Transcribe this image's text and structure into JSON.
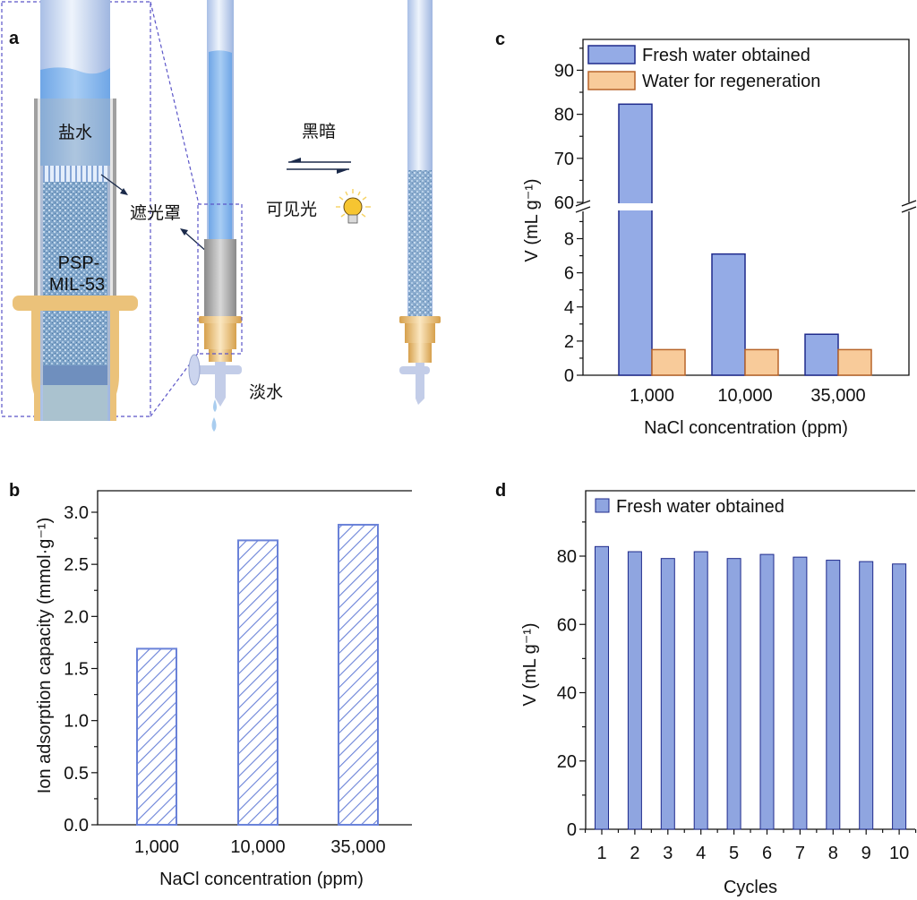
{
  "panel_labels": {
    "a": "a",
    "b": "b",
    "c": "c",
    "d": "d"
  },
  "schematic": {
    "labels": {
      "salt_water": "盐水",
      "light_shield": "遮光罩",
      "material_line1": "PSP-",
      "material_line2": "MIL-53",
      "dark": "黑暗",
      "visible_light": "可见光",
      "fresh_water": "淡水"
    },
    "icons": [
      "bulb-icon",
      "equilibrium-arrows-icon",
      "water-drop-icon",
      "stopcock-icon"
    ],
    "colors": {
      "water": "#8fbcec",
      "material": "#7fa6c9",
      "shield": "#9a9a9a",
      "fitting": "#e2b76a",
      "zoom_box": "#5b55c8"
    }
  },
  "chart_data": [
    {
      "id": "b",
      "type": "bar",
      "title": "",
      "xlabel": "NaCl concentration (ppm)",
      "ylabel": "Ion adsorption capacity (mmol·g⁻¹)",
      "categories": [
        "1,000",
        "10,000",
        "35,000"
      ],
      "series": [
        {
          "name": "Ion adsorption capacity",
          "values": [
            1.69,
            2.73,
            2.88
          ],
          "pattern": "hatched",
          "color": "#6a82d8"
        }
      ],
      "ylim": [
        0,
        3.2
      ],
      "yticks": [
        "0.0",
        "0.5",
        "1.0",
        "1.5",
        "2.0",
        "2.5",
        "3.0"
      ],
      "ytick_values": [
        0,
        0.5,
        1.0,
        1.5,
        2.0,
        2.5,
        3.0
      ],
      "grid": false,
      "legend": "none"
    },
    {
      "id": "c",
      "type": "bar",
      "title": "",
      "xlabel": "NaCl concentration (ppm)",
      "ylabel": "V (mL g⁻¹)",
      "categories": [
        "1,000",
        "10,000",
        "35,000"
      ],
      "series": [
        {
          "name": "Fresh water obtained",
          "values": [
            82.3,
            7.1,
            2.4
          ],
          "color": "#94abe6",
          "edge": "#1f2a8c"
        },
        {
          "name": "Water for regeneration",
          "values": [
            1.5,
            1.5,
            1.5
          ],
          "color": "#f8cb9a",
          "edge": "#b8652a"
        }
      ],
      "axis_break": {
        "lower": [
          0,
          9.6
        ],
        "upper": [
          60,
          97
        ]
      },
      "yticks_lower": [
        "0",
        "2",
        "4",
        "6",
        "8"
      ],
      "yticks_upper": [
        "60",
        "70",
        "80",
        "90"
      ],
      "grid": false,
      "legend": "top-left"
    },
    {
      "id": "d",
      "type": "bar",
      "title": "",
      "xlabel": "Cycles",
      "ylabel": "V (mL g⁻¹)",
      "categories": [
        "1",
        "2",
        "3",
        "4",
        "5",
        "6",
        "7",
        "8",
        "9",
        "10"
      ],
      "series": [
        {
          "name": "Fresh water obtained",
          "values": [
            82.8,
            81.3,
            79.3,
            81.3,
            79.3,
            80.5,
            79.7,
            78.8,
            78.4,
            77.7
          ],
          "color": "#8fa5e0",
          "edge": "#1f2a8c"
        }
      ],
      "ylim": [
        0,
        98
      ],
      "yticks": [
        "0",
        "20",
        "40",
        "60",
        "80"
      ],
      "ytick_values": [
        0,
        20,
        40,
        60,
        80
      ],
      "grid": false,
      "legend": "top-left"
    }
  ]
}
